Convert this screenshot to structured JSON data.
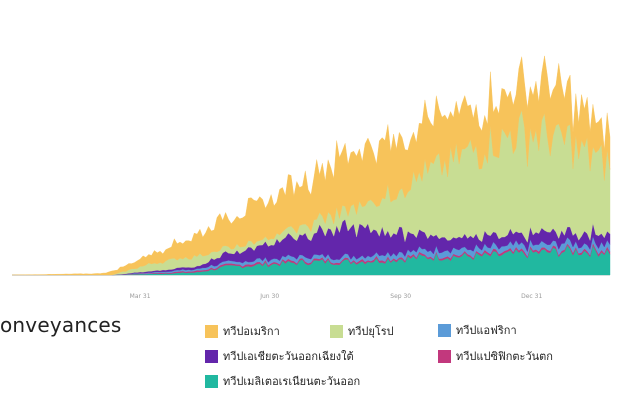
{
  "title_fragment": "onveyances",
  "chart_data": {
    "type": "area",
    "stacked": true,
    "x_tick_labels": [
      "Mar 31",
      "Jun 30",
      "Sep 30",
      "Dec 31"
    ],
    "x_range_days": [
      0,
      420
    ],
    "y_range": [
      0,
      100
    ],
    "grid": false,
    "legend_position": "bottom-right",
    "series": [
      {
        "name": "ทวีปเมลิเตอเรเนียนตะวันออก",
        "color": "#21b8a0",
        "points": [
          [
            0,
            0
          ],
          [
            70,
            0
          ],
          [
            100,
            0.5
          ],
          [
            130,
            1
          ],
          [
            150,
            3
          ],
          [
            180,
            4
          ],
          [
            210,
            5
          ],
          [
            240,
            5
          ],
          [
            270,
            6
          ],
          [
            300,
            7
          ],
          [
            330,
            7
          ],
          [
            360,
            8
          ],
          [
            390,
            9
          ],
          [
            420,
            9
          ]
        ]
      },
      {
        "name": "ทวีปแปซิฟิกตะวันตก",
        "color": "#c2387d",
        "points": [
          [
            0,
            0
          ],
          [
            70,
            0
          ],
          [
            100,
            0.3
          ],
          [
            130,
            0.5
          ],
          [
            150,
            0.6
          ],
          [
            180,
            0.7
          ],
          [
            210,
            0.7
          ],
          [
            240,
            0.7
          ],
          [
            270,
            0.7
          ],
          [
            300,
            0.7
          ],
          [
            330,
            0.8
          ],
          [
            360,
            0.8
          ],
          [
            390,
            0.8
          ],
          [
            420,
            0.8
          ]
        ]
      },
      {
        "name": "ทวีปแอฟริกา",
        "color": "#5b9bd8",
        "points": [
          [
            0,
            0
          ],
          [
            70,
            0
          ],
          [
            100,
            0.3
          ],
          [
            130,
            0.7
          ],
          [
            150,
            1
          ],
          [
            180,
            1.2
          ],
          [
            210,
            1.5
          ],
          [
            240,
            1.5
          ],
          [
            270,
            1.8
          ],
          [
            300,
            2
          ],
          [
            330,
            2
          ],
          [
            360,
            2.2
          ],
          [
            390,
            2.3
          ],
          [
            420,
            2.5
          ]
        ]
      },
      {
        "name": "ทวีปเอเชียตะวันออกเฉียงใต้",
        "color": "#6326ab",
        "points": [
          [
            0,
            0
          ],
          [
            70,
            0
          ],
          [
            100,
            0.5
          ],
          [
            130,
            1
          ],
          [
            150,
            3
          ],
          [
            180,
            6
          ],
          [
            210,
            9
          ],
          [
            240,
            11
          ],
          [
            270,
            8
          ],
          [
            300,
            5
          ],
          [
            330,
            4
          ],
          [
            360,
            4
          ],
          [
            390,
            4
          ],
          [
            420,
            4
          ]
        ]
      },
      {
        "name": "ทวีปยุโรป",
        "color": "#c8dd93",
        "points": [
          [
            0,
            0
          ],
          [
            70,
            0
          ],
          [
            100,
            3
          ],
          [
            130,
            4
          ],
          [
            150,
            2
          ],
          [
            180,
            2
          ],
          [
            210,
            4
          ],
          [
            240,
            7
          ],
          [
            270,
            16
          ],
          [
            300,
            26
          ],
          [
            330,
            34
          ],
          [
            360,
            38
          ],
          [
            390,
            34
          ],
          [
            420,
            26
          ]
        ]
      },
      {
        "name": "ทวีปอเมริกา",
        "color": "#f7c35a",
        "points": [
          [
            0,
            0
          ],
          [
            60,
            0.5
          ],
          [
            80,
            2
          ],
          [
            100,
            4
          ],
          [
            130,
            8
          ],
          [
            150,
            12
          ],
          [
            180,
            14
          ],
          [
            210,
            18
          ],
          [
            240,
            22
          ],
          [
            270,
            20
          ],
          [
            300,
            18
          ],
          [
            330,
            16
          ],
          [
            360,
            19
          ],
          [
            390,
            18
          ],
          [
            420,
            11
          ]
        ]
      }
    ]
  },
  "legend": {
    "items": [
      {
        "label": "ทวีปอเมริกา",
        "color": "#f7c35a"
      },
      {
        "label": "ทวีปยุโรป",
        "color": "#c8dd93"
      },
      {
        "label": "ทวีปแอฟริกา",
        "color": "#5b9bd8"
      },
      {
        "label": "ทวีปเอเชียตะวันออกเฉียงใต้",
        "color": "#6326ab"
      },
      {
        "label": "ทวีปแปซิฟิกตะวันตก",
        "color": "#c2387d"
      },
      {
        "label": "ทวีปเมลิเตอเรเนียนตะวันออก",
        "color": "#21b8a0"
      }
    ]
  }
}
